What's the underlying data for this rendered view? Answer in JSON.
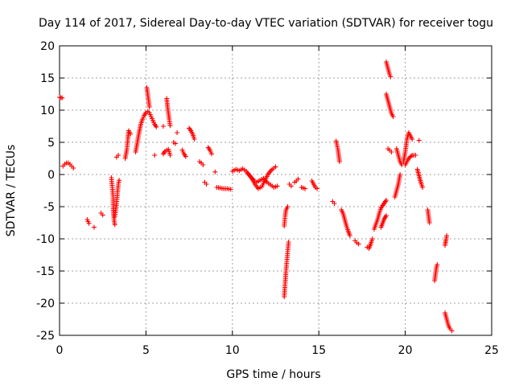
{
  "chart_data": {
    "type": "scatter",
    "title": "Day 114 of 2017, Sidereal Day-to-day VTEC variation (SDTVAR) for receiver togu",
    "xlabel": "GPS time / hours",
    "ylabel": "SDTVAR / TECUs",
    "xlim": [
      0,
      25
    ],
    "ylim": [
      -25,
      20
    ],
    "xticks": [
      0,
      5,
      10,
      15,
      20,
      25
    ],
    "xtick_labels": [
      "0",
      "5",
      "10",
      "15",
      "20",
      "25"
    ],
    "yticks": [
      -25,
      -20,
      -15,
      -10,
      -5,
      0,
      5,
      10,
      15,
      20
    ],
    "ytick_labels": [
      "-25",
      "-20",
      "-15",
      "-10",
      "-5",
      "0",
      "5",
      "10",
      "15",
      "20"
    ],
    "grid": true,
    "marker": "+",
    "color": "#ff0000",
    "segments": [
      [
        [
          0.0,
          12.0
        ],
        [
          0.15,
          11.9
        ]
      ],
      [
        [
          0.2,
          1.3
        ],
        [
          0.3,
          1.6
        ],
        [
          0.4,
          1.8
        ],
        [
          0.5,
          1.8
        ],
        [
          0.6,
          1.6
        ],
        [
          0.7,
          1.3
        ],
        [
          0.8,
          1.0
        ]
      ],
      [
        [
          1.6,
          -7.0
        ],
        [
          1.7,
          -7.6
        ]
      ],
      [
        [
          2.0,
          -8.2
        ]
      ],
      [
        [
          2.4,
          -6.0
        ],
        [
          2.5,
          -6.3
        ]
      ],
      [
        [
          3.0,
          -0.5
        ],
        [
          3.05,
          -2.0
        ],
        [
          3.1,
          -3.5
        ],
        [
          3.1,
          -5.0
        ],
        [
          3.15,
          -7.0
        ],
        [
          3.2,
          -7.8
        ]
      ],
      [
        [
          3.2,
          -6.5
        ],
        [
          3.3,
          -4.5
        ],
        [
          3.35,
          -3.0
        ],
        [
          3.4,
          -1.5
        ],
        [
          3.45,
          -0.9
        ]
      ],
      [
        [
          3.3,
          2.7
        ],
        [
          3.4,
          3.0
        ]
      ],
      [
        [
          3.8,
          2.5
        ],
        [
          3.9,
          4.0
        ],
        [
          3.95,
          5.5
        ],
        [
          4.0,
          6.8
        ],
        [
          4.1,
          6.3
        ]
      ],
      [
        [
          4.4,
          3.5
        ],
        [
          4.5,
          5.0
        ],
        [
          4.6,
          6.5
        ],
        [
          4.7,
          7.8
        ],
        [
          4.8,
          8.6
        ],
        [
          4.9,
          9.2
        ],
        [
          5.0,
          9.6
        ],
        [
          5.1,
          9.8
        ],
        [
          5.2,
          9.6
        ],
        [
          5.3,
          9.0
        ],
        [
          5.4,
          8.4
        ],
        [
          5.5,
          7.8
        ],
        [
          5.6,
          7.4
        ]
      ],
      [
        [
          5.05,
          13.5
        ],
        [
          5.1,
          12.5
        ],
        [
          5.15,
          11.5
        ],
        [
          5.2,
          10.5
        ]
      ],
      [
        [
          5.5,
          3.0
        ]
      ],
      [
        [
          6.0,
          7.5
        ]
      ],
      [
        [
          6.0,
          3.2
        ],
        [
          6.1,
          3.6
        ],
        [
          6.2,
          3.8
        ],
        [
          6.3,
          3.9
        ],
        [
          6.4,
          3.0
        ]
      ],
      [
        [
          6.2,
          11.8
        ],
        [
          6.25,
          10.5
        ],
        [
          6.3,
          9.5
        ],
        [
          6.35,
          8.5
        ],
        [
          6.4,
          7.6
        ]
      ],
      [
        [
          6.6,
          5.0
        ],
        [
          6.7,
          4.8
        ]
      ],
      [
        [
          6.8,
          6.5
        ]
      ],
      [
        [
          7.1,
          3.8
        ],
        [
          7.2,
          3.2
        ],
        [
          7.3,
          2.8
        ]
      ],
      [
        [
          7.5,
          7.2
        ],
        [
          7.6,
          6.8
        ],
        [
          7.7,
          6.3
        ],
        [
          7.8,
          5.5
        ]
      ],
      [
        [
          8.1,
          2.0
        ],
        [
          8.2,
          1.8
        ],
        [
          8.3,
          1.5
        ]
      ],
      [
        [
          8.4,
          -1.2
        ],
        [
          8.5,
          -1.5
        ]
      ],
      [
        [
          8.6,
          4.2
        ],
        [
          8.7,
          3.8
        ],
        [
          8.8,
          3.2
        ]
      ],
      [
        [
          9.0,
          0.4
        ]
      ],
      [
        [
          9.1,
          -2.0
        ],
        [
          9.3,
          -2.1
        ],
        [
          9.5,
          -2.2
        ],
        [
          9.7,
          -2.2
        ],
        [
          9.9,
          -2.3
        ]
      ],
      [
        [
          10.0,
          0.5
        ],
        [
          10.2,
          0.8
        ],
        [
          10.4,
          0.6
        ],
        [
          10.6,
          0.9
        ],
        [
          10.8,
          0.5
        ],
        [
          11.0,
          -0.2
        ],
        [
          11.2,
          -0.8
        ],
        [
          11.4,
          -1.2
        ],
        [
          11.6,
          -0.9
        ],
        [
          11.8,
          -0.6
        ],
        [
          12.0,
          -1.2
        ],
        [
          12.2,
          -1.6
        ],
        [
          12.4,
          -2.0
        ],
        [
          12.6,
          -1.8
        ]
      ],
      [
        [
          10.9,
          0.2
        ],
        [
          11.1,
          -0.5
        ],
        [
          11.3,
          -1.5
        ],
        [
          11.5,
          -2.2
        ],
        [
          11.7,
          -1.9
        ],
        [
          11.9,
          -0.8
        ],
        [
          12.1,
          0.2
        ],
        [
          12.3,
          0.8
        ],
        [
          12.5,
          1.2
        ]
      ],
      [
        [
          13.0,
          -19.0
        ],
        [
          13.05,
          -17.0
        ],
        [
          13.1,
          -15.0
        ],
        [
          13.15,
          -13.5
        ],
        [
          13.2,
          -12.0
        ],
        [
          13.25,
          -10.5
        ]
      ],
      [
        [
          13.0,
          -8.0
        ],
        [
          13.05,
          -6.5
        ],
        [
          13.1,
          -5.5
        ],
        [
          13.2,
          -5.0
        ]
      ],
      [
        [
          13.3,
          -1.5
        ],
        [
          13.4,
          -1.8
        ]
      ],
      [
        [
          13.6,
          -1.2
        ],
        [
          13.7,
          -1.0
        ],
        [
          13.8,
          -0.7
        ]
      ],
      [
        [
          14.0,
          -2.0
        ],
        [
          14.2,
          -2.2
        ]
      ],
      [
        [
          14.6,
          -1.0
        ],
        [
          14.7,
          -1.5
        ],
        [
          14.8,
          -2.0
        ],
        [
          14.9,
          -2.2
        ]
      ],
      [
        [
          15.8,
          -4.2
        ],
        [
          15.9,
          -4.5
        ]
      ],
      [
        [
          16.0,
          5.2
        ],
        [
          16.1,
          4.0
        ],
        [
          16.15,
          3.0
        ],
        [
          16.2,
          2.0
        ]
      ],
      [
        [
          16.3,
          -5.5
        ],
        [
          16.4,
          -6.0
        ],
        [
          16.5,
          -7.0
        ],
        [
          16.6,
          -8.0
        ],
        [
          16.7,
          -8.8
        ],
        [
          16.8,
          -9.5
        ]
      ],
      [
        [
          17.1,
          -10.3
        ],
        [
          17.2,
          -10.6
        ],
        [
          17.3,
          -10.8
        ]
      ],
      [
        [
          17.8,
          -11.3
        ],
        [
          17.9,
          -11.5
        ],
        [
          18.0,
          -10.8
        ],
        [
          18.1,
          -10.0
        ]
      ],
      [
        [
          18.2,
          -8.5
        ],
        [
          18.4,
          -7.0
        ],
        [
          18.5,
          -6.0
        ],
        [
          18.6,
          -5.2
        ],
        [
          18.7,
          -4.8
        ],
        [
          18.8,
          -4.4
        ],
        [
          18.9,
          -4.0
        ]
      ],
      [
        [
          18.6,
          -8.2
        ],
        [
          18.7,
          -7.5
        ],
        [
          18.8,
          -6.8
        ],
        [
          18.9,
          -6.4
        ]
      ],
      [
        [
          18.9,
          17.5
        ],
        [
          18.95,
          17.0
        ],
        [
          19.0,
          16.5
        ],
        [
          19.05,
          16.0
        ],
        [
          19.1,
          15.5
        ],
        [
          19.15,
          15.2
        ]
      ],
      [
        [
          18.9,
          12.5
        ],
        [
          19.0,
          11.5
        ],
        [
          19.1,
          10.5
        ],
        [
          19.2,
          9.5
        ],
        [
          19.3,
          9.0
        ]
      ],
      [
        [
          19.0,
          4.0
        ],
        [
          19.1,
          3.8
        ],
        [
          19.2,
          3.5
        ]
      ],
      [
        [
          19.4,
          -3.5
        ],
        [
          19.5,
          -2.5
        ],
        [
          19.6,
          -1.5
        ],
        [
          19.7,
          0.0
        ]
      ],
      [
        [
          19.5,
          4.0
        ],
        [
          19.6,
          3.0
        ],
        [
          19.7,
          2.0
        ],
        [
          19.8,
          1.5
        ]
      ],
      [
        [
          19.9,
          2.0
        ],
        [
          20.0,
          3.5
        ],
        [
          20.1,
          5.5
        ],
        [
          20.2,
          6.5
        ],
        [
          20.3,
          6.0
        ],
        [
          20.4,
          5.5
        ]
      ],
      [
        [
          20.0,
          1.5
        ],
        [
          20.2,
          2.5
        ],
        [
          20.4,
          3.0
        ],
        [
          20.6,
          3.0
        ]
      ],
      [
        [
          20.8,
          5.3
        ]
      ],
      [
        [
          20.7,
          0.8
        ],
        [
          20.8,
          -0.2
        ],
        [
          20.9,
          -1.2
        ],
        [
          21.0,
          -2.0
        ]
      ],
      [
        [
          21.3,
          -5.5
        ],
        [
          21.35,
          -6.5
        ],
        [
          21.4,
          -7.5
        ]
      ],
      [
        [
          21.7,
          -16.5
        ],
        [
          21.75,
          -15.5
        ],
        [
          21.8,
          -14.5
        ],
        [
          21.85,
          -14.0
        ]
      ],
      [
        [
          22.3,
          -11.0
        ],
        [
          22.35,
          -10.3
        ],
        [
          22.4,
          -9.5
        ]
      ],
      [
        [
          22.3,
          -21.5
        ],
        [
          22.4,
          -22.5
        ],
        [
          22.5,
          -23.5
        ],
        [
          22.6,
          -24.0
        ],
        [
          22.7,
          -24.3
        ]
      ]
    ]
  }
}
